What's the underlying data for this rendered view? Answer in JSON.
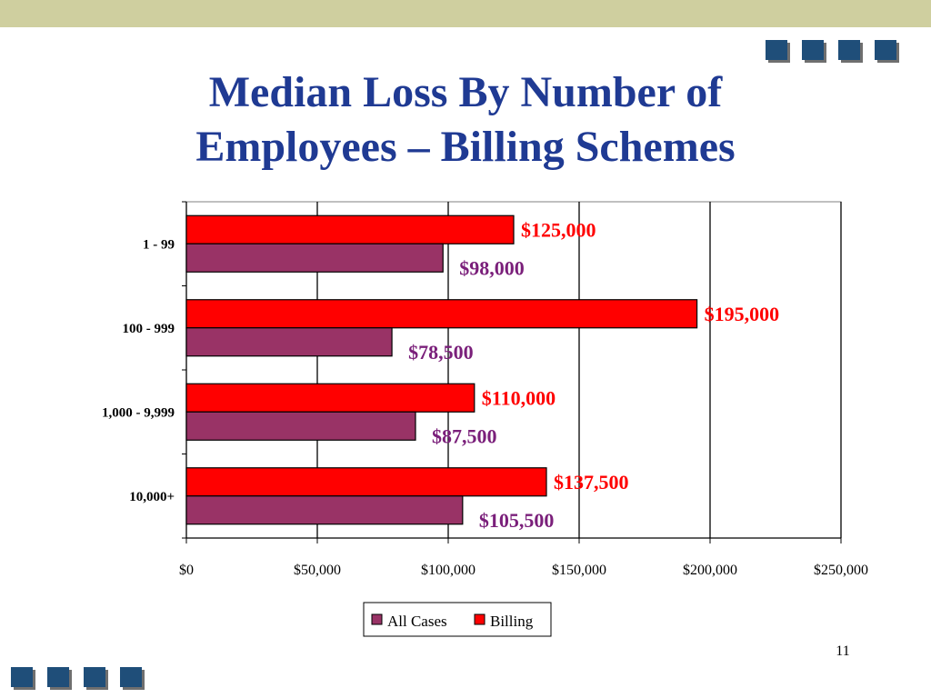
{
  "slide": {
    "title_line1": "Median Loss By Number of",
    "title_line2": "Employees – Billing Schemes",
    "page_number": "11"
  },
  "colors": {
    "title": "#1f3a93",
    "billing": "#ff0000",
    "all_cases": "#993366",
    "billing_label": "#ff0000",
    "all_cases_label": "#7a1f7a",
    "top_band": "#cfcf9f",
    "squares": "#1f4e79"
  },
  "chart_data": {
    "type": "bar",
    "orientation": "horizontal",
    "categories": [
      "1 - 99",
      "100 - 999",
      "1,000 - 9,999",
      "10,000+"
    ],
    "series": [
      {
        "name": "Billing",
        "values": [
          125000,
          195000,
          110000,
          137500
        ],
        "labels": [
          "$125,000",
          "$195,000",
          "$110,000",
          "$137,500"
        ]
      },
      {
        "name": "All Cases",
        "values": [
          98000,
          78500,
          87500,
          105500
        ],
        "labels": [
          "$98,000",
          "$78,500",
          "$87,500",
          "$105,500"
        ]
      }
    ],
    "xlim": [
      0,
      250000
    ],
    "xticks": [
      0,
      50000,
      100000,
      150000,
      200000,
      250000
    ],
    "xtick_labels": [
      "$0",
      "$50,000",
      "$100,000",
      "$150,000",
      "$200,000",
      "$250,000"
    ],
    "grid": "vertical major gridlines",
    "legend": {
      "position": "bottom",
      "entries": [
        "All Cases",
        "Billing"
      ]
    }
  }
}
